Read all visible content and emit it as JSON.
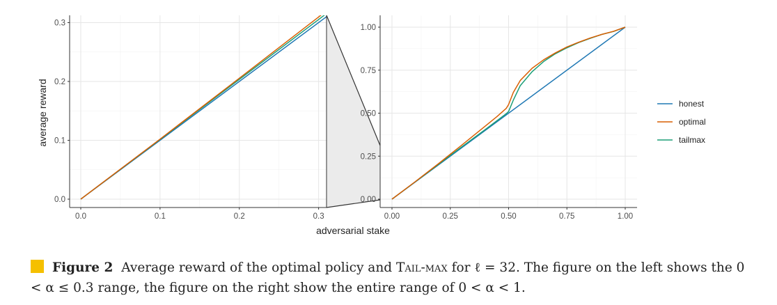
{
  "chart_data": [
    {
      "type": "line",
      "panel": "left",
      "xlabel": "adversarial stake",
      "ylabel": "average reward",
      "xlim": [
        0,
        0.31
      ],
      "ylim": [
        0,
        0.31
      ],
      "x_ticks": [
        0.0,
        0.1,
        0.2,
        0.3
      ],
      "x_tick_labels": [
        "0.0",
        "0.1",
        "0.2",
        "0.3"
      ],
      "y_ticks": [
        0.0,
        0.1,
        0.2,
        0.3
      ],
      "y_tick_labels": [
        "0.0",
        "0.1",
        "0.2",
        "0.3"
      ],
      "grid": true,
      "series": [
        {
          "name": "honest",
          "color": "#1f78b4",
          "points": [
            [
              0,
              0
            ],
            [
              0.31,
              0.31
            ]
          ]
        },
        {
          "name": "tailmax",
          "color": "#1b9e77",
          "points": [
            [
              0,
              0
            ],
            [
              0.1,
              0.1015
            ],
            [
              0.2,
              0.2035
            ],
            [
              0.3,
              0.3052
            ],
            [
              0.31,
              0.3155
            ]
          ]
        },
        {
          "name": "optimal",
          "color": "#d95f02",
          "points": [
            [
              0,
              0
            ],
            [
              0.1,
              0.102
            ],
            [
              0.2,
              0.2055
            ],
            [
              0.3,
              0.3095
            ],
            [
              0.31,
              0.32
            ]
          ]
        }
      ]
    },
    {
      "type": "line",
      "panel": "right",
      "xlabel": "adversarial stake",
      "ylabel": "average reward",
      "xlim": [
        0,
        1
      ],
      "ylim": [
        0,
        1
      ],
      "x_ticks": [
        0.0,
        0.25,
        0.5,
        0.75,
        1.0
      ],
      "x_tick_labels": [
        "0.00",
        "0.25",
        "0.50",
        "0.75",
        "1.00"
      ],
      "y_ticks": [
        0.0,
        0.25,
        0.5,
        0.75,
        1.0
      ],
      "y_tick_labels": [
        "0.00",
        "0.25",
        "0.50",
        "0.75",
        "1.00"
      ],
      "grid": true,
      "series": [
        {
          "name": "honest",
          "color": "#1f78b4",
          "points": [
            [
              0,
              0
            ],
            [
              1,
              1
            ]
          ]
        },
        {
          "name": "tailmax",
          "color": "#1b9e77",
          "points": [
            [
              0,
              0
            ],
            [
              0.1,
              0.101
            ],
            [
              0.2,
              0.203
            ],
            [
              0.3,
              0.305
            ],
            [
              0.4,
              0.405
            ],
            [
              0.49,
              0.497
            ],
            [
              0.5,
              0.51
            ],
            [
              0.52,
              0.575
            ],
            [
              0.55,
              0.66
            ],
            [
              0.6,
              0.74
            ],
            [
              0.65,
              0.8
            ],
            [
              0.7,
              0.845
            ],
            [
              0.75,
              0.88
            ],
            [
              0.8,
              0.91
            ],
            [
              0.85,
              0.935
            ],
            [
              0.9,
              0.958
            ],
            [
              0.95,
              0.975
            ],
            [
              1,
              1
            ]
          ]
        },
        {
          "name": "optimal",
          "color": "#d95f02",
          "points": [
            [
              0,
              0
            ],
            [
              0.1,
              0.102
            ],
            [
              0.2,
              0.207
            ],
            [
              0.3,
              0.315
            ],
            [
              0.4,
              0.425
            ],
            [
              0.45,
              0.48
            ],
            [
              0.49,
              0.528
            ],
            [
              0.5,
              0.55
            ],
            [
              0.52,
              0.62
            ],
            [
              0.55,
              0.69
            ],
            [
              0.6,
              0.76
            ],
            [
              0.65,
              0.81
            ],
            [
              0.7,
              0.85
            ],
            [
              0.75,
              0.885
            ],
            [
              0.8,
              0.912
            ],
            [
              0.85,
              0.937
            ],
            [
              0.9,
              0.958
            ],
            [
              0.95,
              0.976
            ],
            [
              1,
              1
            ]
          ]
        }
      ]
    }
  ],
  "legend": {
    "placement": "right",
    "items": [
      {
        "label": "honest",
        "color": "#1f78b4"
      },
      {
        "label": "optimal",
        "color": "#d95f02"
      },
      {
        "label": "tailmax",
        "color": "#1b9e77"
      }
    ]
  },
  "zoom_region": {
    "from_x": 0.31,
    "to_panel": "right"
  },
  "caption": {
    "label": "Figure 2",
    "text_before": "Average reward of the optimal policy and",
    "policy_name": "Tail-max",
    "text_after": "for ℓ = 32. The figure on the left shows the 0 < α ≤ 0.3 range, the figure on the right show the entire range of 0 < α < 1."
  }
}
